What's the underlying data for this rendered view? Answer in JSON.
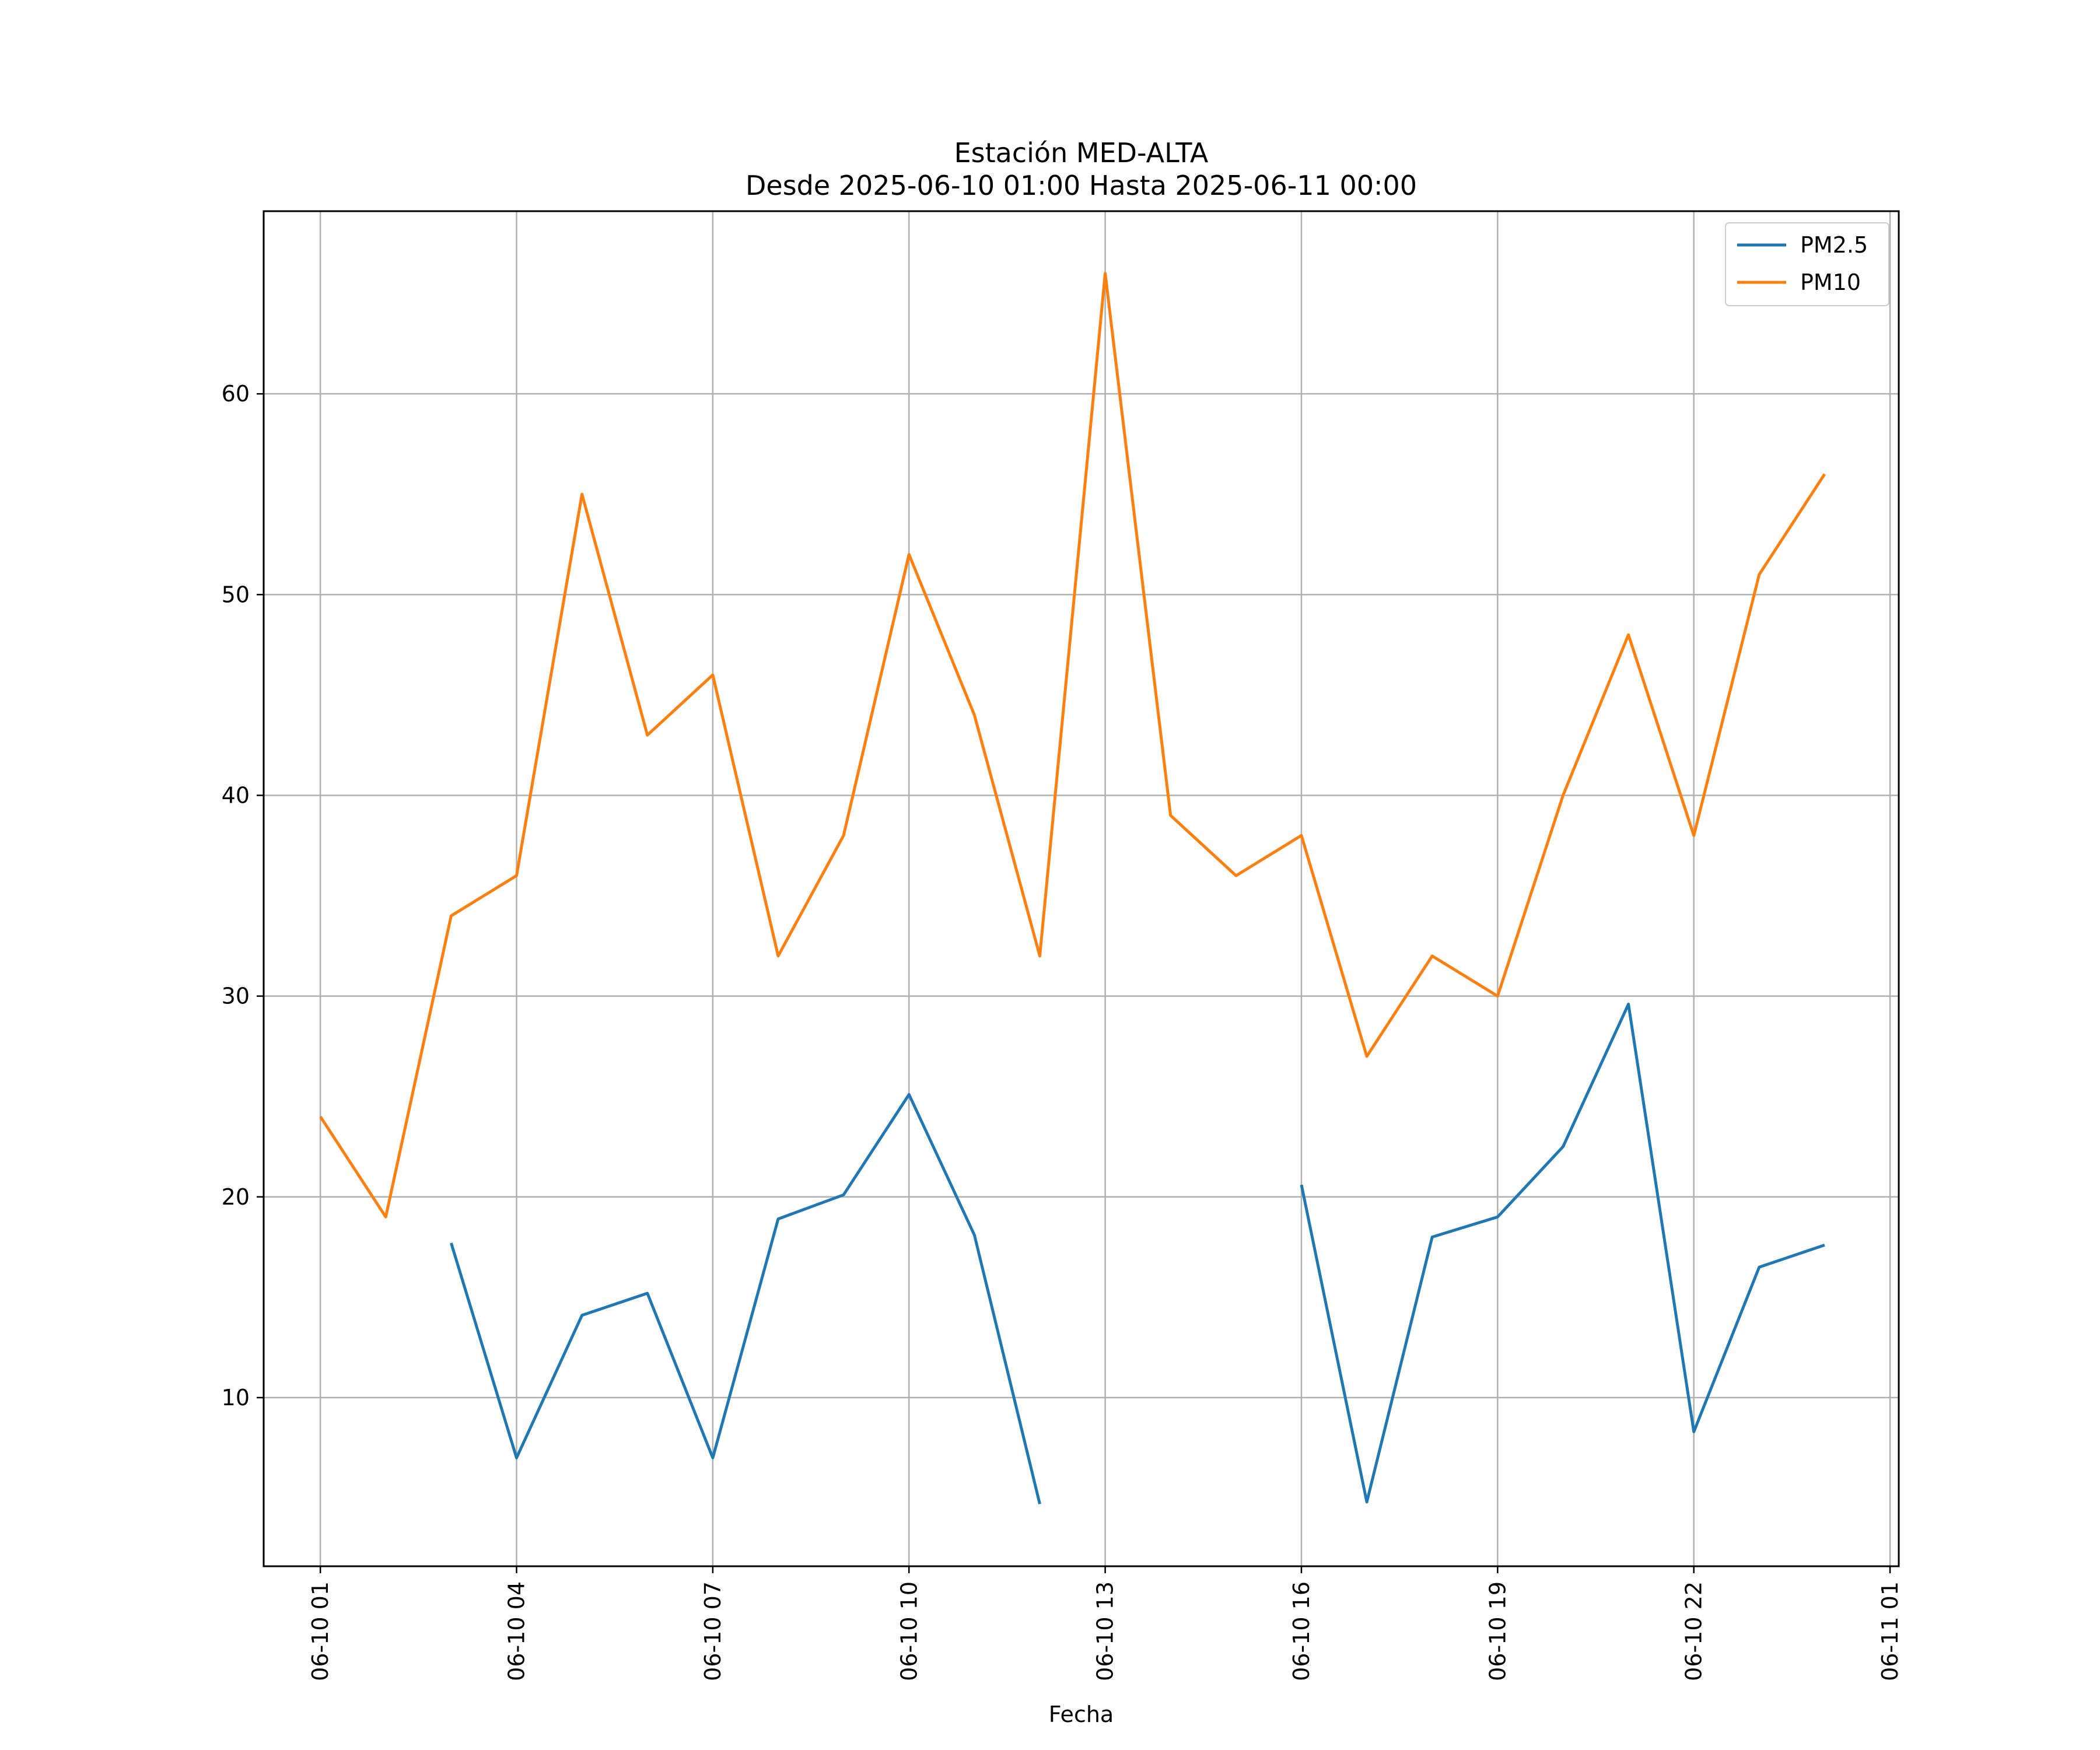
{
  "chart_data": {
    "type": "line",
    "title": "Estación MED-ALTA",
    "subtitle": "Desde 2025-06-10 01:00 Hasta 2025-06-11 00:00",
    "xlabel": "Fecha",
    "ylabel": "",
    "x": [
      "06-10 01",
      "06-10 02",
      "06-10 03",
      "06-10 04",
      "06-10 05",
      "06-10 06",
      "06-10 07",
      "06-10 08",
      "06-10 09",
      "06-10 10",
      "06-10 11",
      "06-10 12",
      "06-10 13",
      "06-10 14",
      "06-10 15",
      "06-10 16",
      "06-10 17",
      "06-10 18",
      "06-10 19",
      "06-10 20",
      "06-10 21",
      "06-10 22",
      "06-10 23",
      "06-11 00"
    ],
    "x_ticks": [
      "06-10 01",
      "06-10 04",
      "06-10 07",
      "06-10 10",
      "06-10 13",
      "06-10 16",
      "06-10 19",
      "06-10 22",
      "06-11 01"
    ],
    "y_ticks": [
      10,
      20,
      30,
      40,
      50,
      60
    ],
    "ylim": [
      1.6,
      69.1
    ],
    "xlim": [
      "06-10 00:08",
      "06-11 01:08"
    ],
    "grid": true,
    "legend_position": "top-right",
    "series": [
      {
        "name": "PM2.5",
        "color": "#1f77b4",
        "values": [
          null,
          null,
          17.7,
          7.0,
          14.1,
          15.2,
          7.0,
          18.9,
          20.1,
          25.1,
          18.1,
          4.7,
          null,
          null,
          null,
          20.6,
          4.8,
          18.0,
          19.0,
          22.5,
          29.6,
          8.3,
          16.5,
          17.6
        ]
      },
      {
        "name": "PM10",
        "color": "#ff7f0e",
        "values": [
          24,
          19,
          34,
          36,
          55,
          43,
          46,
          32,
          38,
          52,
          44,
          32,
          66,
          39,
          36,
          38,
          27,
          32,
          30,
          40,
          48,
          38,
          51,
          56
        ]
      }
    ]
  }
}
